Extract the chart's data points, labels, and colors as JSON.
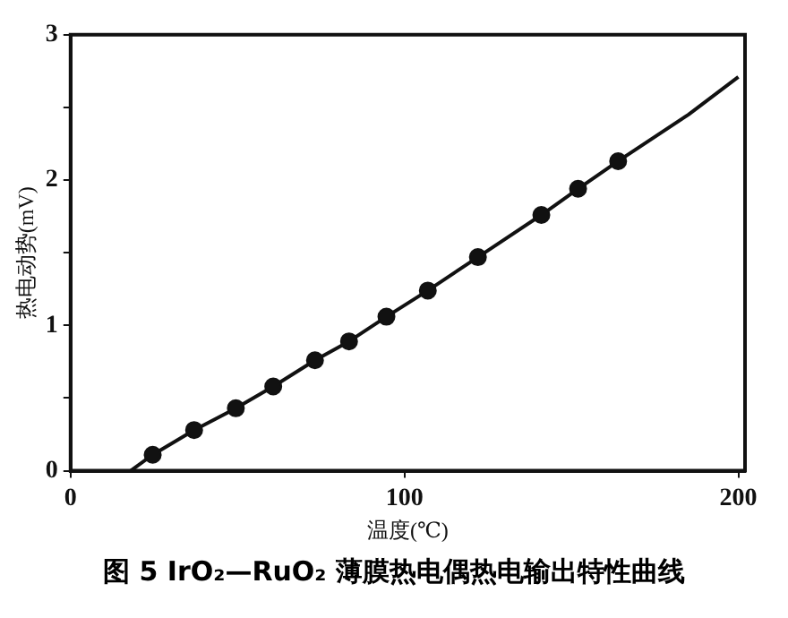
{
  "chart_data": {
    "type": "scatter",
    "title": "图 5  IrO₂—RuO₂ 薄膜热电偶热电输出特性曲线",
    "xlabel": "温度(℃)",
    "ylabel": "热电动势(mV)",
    "xlim": [
      0,
      202
    ],
    "xticks": [
      0,
      100,
      200
    ],
    "ylim": [
      0,
      3
    ],
    "yticks": [
      0,
      {
        "value": 0.5,
        "label": null
      },
      1,
      {
        "value": 1.5,
        "label": null
      },
      2,
      {
        "value": 2.5,
        "label": null
      },
      3
    ],
    "series": [
      {
        "marker": "circle",
        "color": "#111111",
        "x": [
          24.6,
          37,
          49.5,
          60.7,
          73.2,
          83.4,
          94.6,
          107,
          122,
          141,
          152,
          164
        ],
        "values": [
          0.11,
          0.28,
          0.43,
          0.58,
          0.76,
          0.89,
          1.06,
          1.24,
          1.47,
          1.76,
          1.94,
          2.13
        ]
      },
      {
        "type": "line",
        "marker": "none",
        "color": "#111111",
        "x": [
          18,
          24.6,
          37,
          49.5,
          60.7,
          73.2,
          83.4,
          94.6,
          107,
          122,
          141,
          152,
          164,
          185,
          200
        ],
        "values": [
          0,
          0.11,
          0.28,
          0.43,
          0.58,
          0.76,
          0.89,
          1.06,
          1.24,
          1.47,
          1.76,
          1.94,
          2.13,
          2.45,
          2.71
        ]
      }
    ]
  }
}
